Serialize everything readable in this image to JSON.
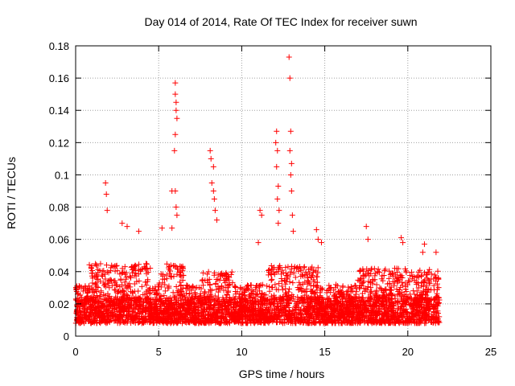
{
  "chart_data": {
    "type": "scatter",
    "title": "Day 014 of 2014, Rate Of TEC Index for receiver suwn",
    "xlabel": "GPS time / hours",
    "ylabel": "ROTI / TECUs",
    "xlim": [
      0,
      25
    ],
    "ylim": [
      0,
      0.18
    ],
    "xticks": [
      0,
      5,
      10,
      15,
      20,
      25
    ],
    "yticks": [
      0,
      0.02,
      0.04,
      0.06,
      0.08,
      0.1,
      0.12,
      0.14,
      0.16,
      0.18
    ],
    "xtick_labels": [
      "0",
      "5",
      "10",
      "15",
      "20",
      "25"
    ],
    "ytick_labels": [
      "0",
      "0.02",
      "0.04",
      "0.06",
      "0.08",
      "0.1",
      "0.12",
      "0.14",
      "0.16",
      "0.18"
    ],
    "grid": true,
    "marker": "+",
    "color": "#ff0000",
    "data_extent_hours": [
      0,
      21.9
    ],
    "background_level": [
      0.008,
      0.032
    ],
    "notable_points": [
      {
        "x": 1.8,
        "y": 0.095
      },
      {
        "x": 1.85,
        "y": 0.088
      },
      {
        "x": 1.9,
        "y": 0.078
      },
      {
        "x": 2.8,
        "y": 0.07
      },
      {
        "x": 3.1,
        "y": 0.068
      },
      {
        "x": 3.8,
        "y": 0.065
      },
      {
        "x": 5.2,
        "y": 0.067
      },
      {
        "x": 5.8,
        "y": 0.067
      },
      {
        "x": 5.8,
        "y": 0.09
      },
      {
        "x": 6.0,
        "y": 0.157
      },
      {
        "x": 6.0,
        "y": 0.15
      },
      {
        "x": 6.05,
        "y": 0.145
      },
      {
        "x": 6.05,
        "y": 0.14
      },
      {
        "x": 6.1,
        "y": 0.135
      },
      {
        "x": 6.0,
        "y": 0.125
      },
      {
        "x": 5.95,
        "y": 0.115
      },
      {
        "x": 6.0,
        "y": 0.09
      },
      {
        "x": 6.05,
        "y": 0.08
      },
      {
        "x": 6.1,
        "y": 0.075
      },
      {
        "x": 8.1,
        "y": 0.115
      },
      {
        "x": 8.15,
        "y": 0.11
      },
      {
        "x": 8.3,
        "y": 0.105
      },
      {
        "x": 8.2,
        "y": 0.095
      },
      {
        "x": 8.3,
        "y": 0.09
      },
      {
        "x": 8.35,
        "y": 0.085
      },
      {
        "x": 8.4,
        "y": 0.078
      },
      {
        "x": 8.5,
        "y": 0.072
      },
      {
        "x": 11.1,
        "y": 0.078
      },
      {
        "x": 11.2,
        "y": 0.075
      },
      {
        "x": 11.0,
        "y": 0.058
      },
      {
        "x": 12.1,
        "y": 0.127
      },
      {
        "x": 12.05,
        "y": 0.12
      },
      {
        "x": 12.15,
        "y": 0.115
      },
      {
        "x": 12.1,
        "y": 0.105
      },
      {
        "x": 12.2,
        "y": 0.093
      },
      {
        "x": 12.15,
        "y": 0.085
      },
      {
        "x": 12.25,
        "y": 0.078
      },
      {
        "x": 12.2,
        "y": 0.07
      },
      {
        "x": 12.85,
        "y": 0.173
      },
      {
        "x": 12.9,
        "y": 0.16
      },
      {
        "x": 12.95,
        "y": 0.127
      },
      {
        "x": 12.9,
        "y": 0.115
      },
      {
        "x": 13.0,
        "y": 0.107
      },
      {
        "x": 12.95,
        "y": 0.1
      },
      {
        "x": 13.0,
        "y": 0.09
      },
      {
        "x": 13.05,
        "y": 0.075
      },
      {
        "x": 13.1,
        "y": 0.065
      },
      {
        "x": 14.5,
        "y": 0.066
      },
      {
        "x": 14.6,
        "y": 0.06
      },
      {
        "x": 14.8,
        "y": 0.058
      },
      {
        "x": 17.5,
        "y": 0.068
      },
      {
        "x": 17.6,
        "y": 0.06
      },
      {
        "x": 19.6,
        "y": 0.061
      },
      {
        "x": 19.7,
        "y": 0.058
      },
      {
        "x": 21.0,
        "y": 0.057
      },
      {
        "x": 20.9,
        "y": 0.052
      },
      {
        "x": 21.7,
        "y": 0.052
      }
    ],
    "active_periods": [
      {
        "start": 0.8,
        "end": 4.5,
        "level": 0.045
      },
      {
        "start": 5.0,
        "end": 6.5,
        "level": 0.045
      },
      {
        "start": 7.6,
        "end": 9.5,
        "level": 0.04
      },
      {
        "start": 11.6,
        "end": 14.6,
        "level": 0.045
      },
      {
        "start": 17.0,
        "end": 21.9,
        "level": 0.042
      }
    ]
  }
}
